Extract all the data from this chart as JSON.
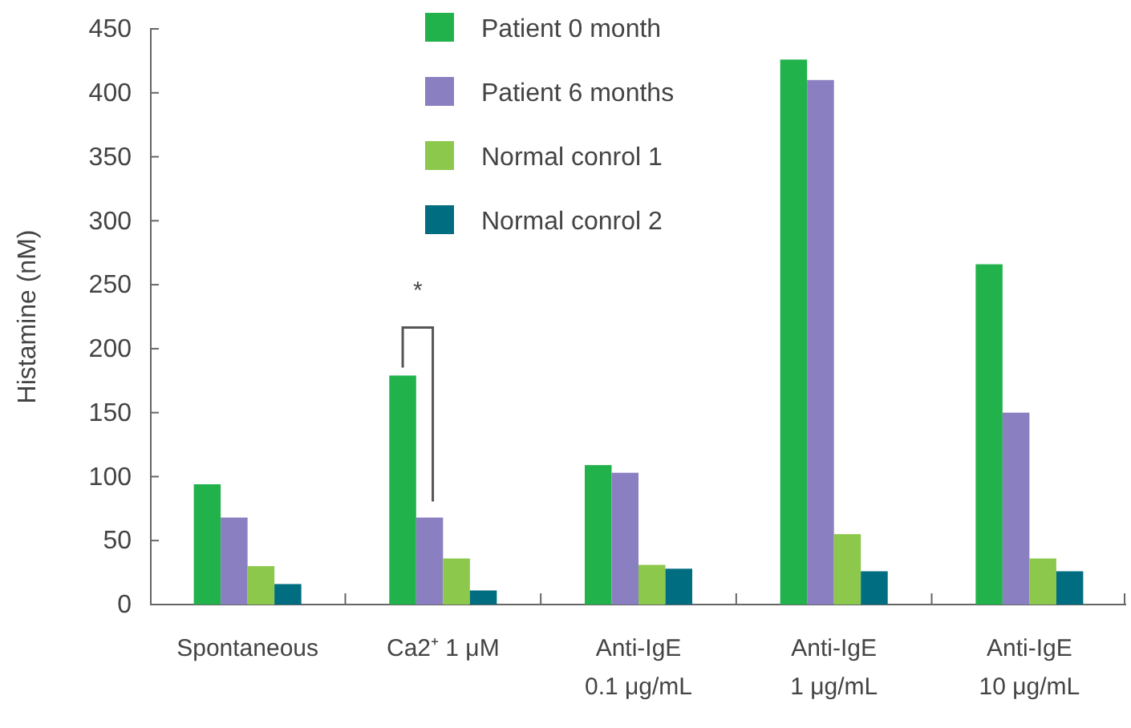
{
  "chart_data": {
    "type": "bar",
    "ylabel": "Histamine (nM)",
    "categories": [
      "Spontaneous",
      "Ca2⁺ 1 μM",
      "Anti-IgE\n0.1 μg/mL",
      "Anti-IgE\n1 μg/mL",
      "Anti-IgE\n10 μg/mL"
    ],
    "series": [
      {
        "name": "Patient 0 month",
        "color": "#22b24c",
        "values": [
          94,
          179,
          109,
          426,
          266
        ]
      },
      {
        "name": "Patient 6 months",
        "color": "#8a7fc0",
        "values": [
          68,
          68,
          103,
          410,
          150
        ]
      },
      {
        "name": "Normal conrol 1",
        "color": "#8cc84b",
        "values": [
          30,
          36,
          31,
          55,
          36
        ]
      },
      {
        "name": "Normal conrol 2",
        "color": "#006d80",
        "values": [
          16,
          11,
          28,
          26,
          26
        ]
      }
    ],
    "ylim": [
      0,
      450
    ],
    "yticks": [
      0,
      50,
      100,
      150,
      200,
      250,
      300,
      350,
      400,
      450
    ],
    "annotations": [
      "*"
    ],
    "legend": "top",
    "grid": false
  }
}
